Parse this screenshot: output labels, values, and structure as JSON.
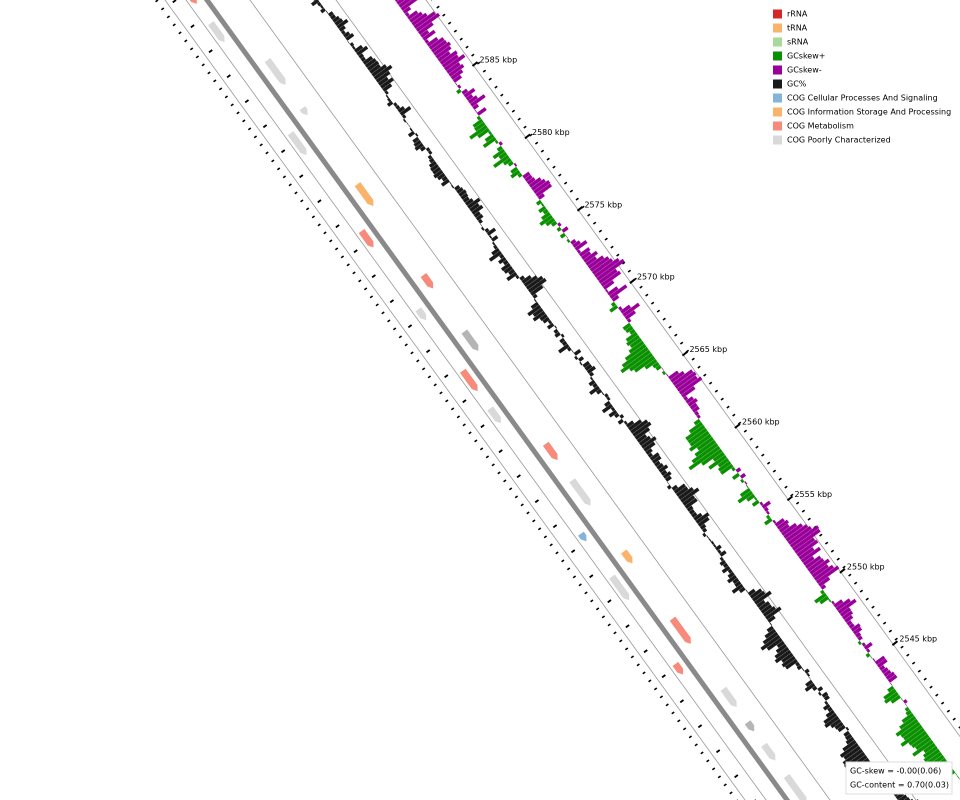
{
  "legend": [
    {
      "label": "rRNA",
      "color": "#d62728"
    },
    {
      "label": "tRNA",
      "color": "#f9b36b"
    },
    {
      "label": "sRNA",
      "color": "#a6d99a"
    },
    {
      "label": "GCskew+",
      "color": "#0a9100"
    },
    {
      "label": "GCskew-",
      "color": "#990099"
    },
    {
      "label": "GC%",
      "color": "#1a1a1a"
    },
    {
      "label": "COG Cellular Processes And Signaling",
      "color": "#84b5d9"
    },
    {
      "label": "COG Information Storage And Processing",
      "color": "#f9b36b"
    },
    {
      "label": "COG Metabolism",
      "color": "#f78a7a"
    },
    {
      "label": "COG Poorly Characterized",
      "color": "#d9d9d9"
    }
  ],
  "ticks": [
    "2585 kbp",
    "2580 kbp",
    "2575 kbp",
    "2570 kbp",
    "2565 kbp",
    "2560 kbp",
    "2555 kbp",
    "2550 kbp",
    "2545 kbp"
  ],
  "stats": {
    "gc_skew": "GC-skew = -0.00(0.06)",
    "gc_content": "GC-content = 0.70(0.03)"
  }
}
